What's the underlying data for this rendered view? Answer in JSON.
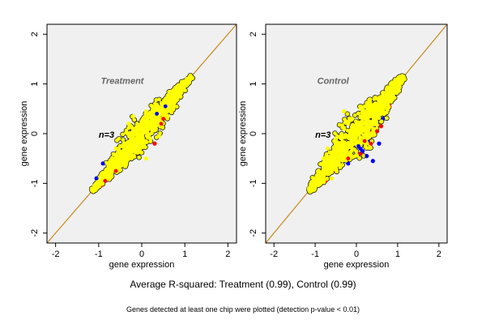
{
  "chart_data": [
    {
      "type": "scatter",
      "title": "Treatment",
      "annotation": "n=3",
      "xlabel": "gene expression",
      "ylabel": "gene expression",
      "xlim": [
        -2.2,
        2.2
      ],
      "ylim": [
        -2.2,
        2.2
      ],
      "xticks": [
        -2,
        -1,
        0,
        1,
        2
      ],
      "yticks": [
        -2,
        -1,
        0,
        1,
        2
      ],
      "diagonal": {
        "from": [
          -2.2,
          -2.2
        ],
        "to": [
          2.2,
          2.2
        ],
        "color": "#c88a1e"
      },
      "series": [
        {
          "color": "#0000ff",
          "points": [
            [
              -1.05,
              -0.9
            ],
            [
              -0.9,
              -0.6
            ],
            [
              0.35,
              0.4
            ],
            [
              0.55,
              0.55
            ],
            [
              -0.7,
              -0.5
            ],
            [
              0.1,
              0.2
            ],
            [
              0.4,
              0.55
            ],
            [
              -0.4,
              -0.3
            ],
            [
              0.85,
              0.9
            ]
          ]
        },
        {
          "color": "#ff0000",
          "points": [
            [
              -0.85,
              -0.95
            ],
            [
              -0.6,
              -0.75
            ],
            [
              0.45,
              0.2
            ],
            [
              0.5,
              0.3
            ],
            [
              0.05,
              -0.25
            ],
            [
              -0.3,
              -0.45
            ],
            [
              0.25,
              0.05
            ],
            [
              0.7,
              0.55
            ],
            [
              -0.95,
              -1.05
            ],
            [
              0.9,
              0.75
            ],
            [
              0.3,
              -0.2
            ]
          ]
        },
        {
          "color": "#ffff00",
          "points": [
            [
              -1.1,
              -1.05
            ],
            [
              -0.9,
              -0.85
            ],
            [
              -0.7,
              -0.7
            ],
            [
              -0.5,
              -0.45
            ],
            [
              -0.3,
              -0.3
            ],
            [
              -0.1,
              -0.1
            ],
            [
              0.1,
              0.1
            ],
            [
              0.3,
              0.3
            ],
            [
              0.5,
              0.5
            ],
            [
              0.7,
              0.7
            ],
            [
              0.9,
              0.9
            ],
            [
              1.05,
              1.1
            ],
            [
              -0.3,
              0.2
            ],
            [
              -0.2,
              0.35
            ],
            [
              0.1,
              0.45
            ],
            [
              0.2,
              -0.1
            ],
            [
              0.4,
              -0.05
            ],
            [
              0.1,
              -0.5
            ],
            [
              -0.6,
              -0.3
            ],
            [
              0.6,
              0.35
            ],
            [
              -0.8,
              -0.6
            ],
            [
              0.8,
              0.9
            ],
            [
              -0.4,
              -0.6
            ],
            [
              0.0,
              0.2
            ]
          ]
        }
      ]
    },
    {
      "type": "scatter",
      "title": "Control",
      "annotation": "n=3",
      "xlabel": "gene expression",
      "ylabel": "gene expression",
      "xlim": [
        -2.2,
        2.2
      ],
      "ylim": [
        -2.2,
        2.2
      ],
      "xticks": [
        -2,
        -1,
        0,
        1,
        2
      ],
      "yticks": [
        -2,
        -1,
        0,
        1,
        2
      ],
      "diagonal": {
        "from": [
          -2.2,
          -2.2
        ],
        "to": [
          2.2,
          2.2
        ],
        "color": "#c88a1e"
      },
      "series": [
        {
          "color": "#0000ff",
          "points": [
            [
              0.05,
              -0.25
            ],
            [
              0.1,
              -0.3
            ],
            [
              0.15,
              -0.35
            ],
            [
              0.25,
              -0.45
            ],
            [
              0.4,
              -0.55
            ],
            [
              0.55,
              -0.2
            ],
            [
              0.3,
              -0.15
            ],
            [
              0.65,
              0.3
            ],
            [
              -0.2,
              -0.6
            ],
            [
              0.9,
              0.8
            ],
            [
              -1.0,
              -1.0
            ],
            [
              0.45,
              0.15
            ]
          ]
        },
        {
          "color": "#ff0000",
          "points": [
            [
              0.35,
              -0.2
            ],
            [
              0.2,
              -0.15
            ],
            [
              -0.2,
              -0.5
            ],
            [
              0.5,
              0.05
            ],
            [
              0.8,
              0.55
            ],
            [
              -0.5,
              -0.75
            ],
            [
              0.6,
              0.15
            ],
            [
              -0.75,
              -0.95
            ],
            [
              0.3,
              0.05
            ],
            [
              1.0,
              0.95
            ],
            [
              0.1,
              -0.4
            ]
          ]
        },
        {
          "color": "#ffff00",
          "points": [
            [
              -1.15,
              -1.1
            ],
            [
              -0.95,
              -0.9
            ],
            [
              -0.75,
              -0.7
            ],
            [
              -0.55,
              -0.5
            ],
            [
              -0.35,
              -0.3
            ],
            [
              -0.15,
              -0.1
            ],
            [
              0.05,
              0.1
            ],
            [
              0.25,
              0.3
            ],
            [
              0.45,
              0.5
            ],
            [
              0.65,
              0.7
            ],
            [
              0.85,
              0.9
            ],
            [
              1.05,
              1.1
            ],
            [
              -0.7,
              -0.3
            ],
            [
              -0.5,
              -0.1
            ],
            [
              -0.3,
              0.1
            ],
            [
              -0.1,
              0.3
            ],
            [
              0.1,
              0.5
            ],
            [
              -0.3,
              0.45
            ],
            [
              0.25,
              -0.1
            ],
            [
              -0.8,
              -0.5
            ],
            [
              -0.6,
              -0.9
            ],
            [
              0.3,
              0.6
            ],
            [
              -0.2,
              0.2
            ]
          ]
        }
      ]
    }
  ],
  "caption": "Average R-squared: Treatment (0.99), Control (0.99)",
  "note": "Genes detected at least one chip were plotted (detection p-value < 0.01)"
}
